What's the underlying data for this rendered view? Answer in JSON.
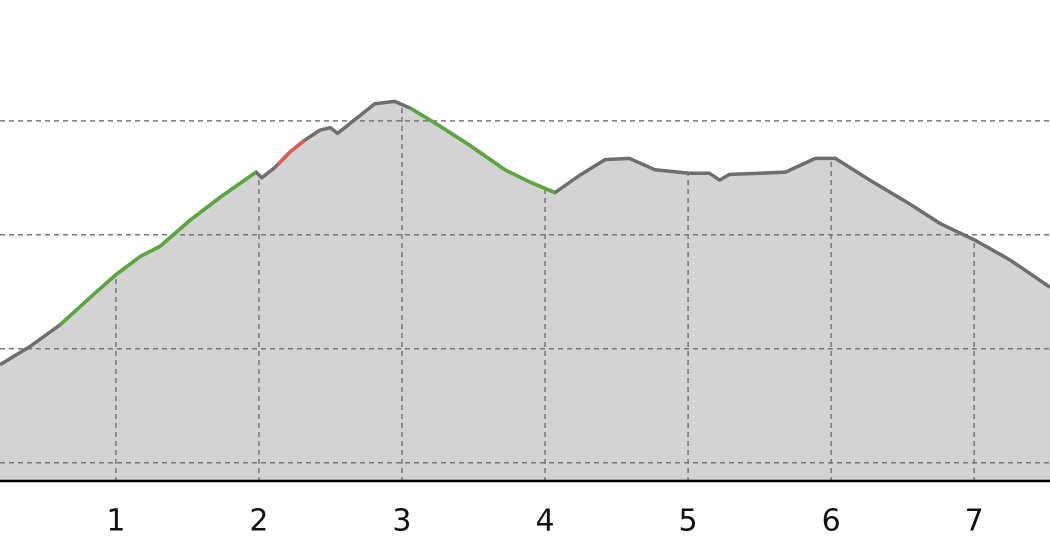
{
  "chart_data": {
    "type": "area",
    "x": [
      0.19,
      0.4,
      0.61,
      0.82,
      1.0,
      1.17,
      1.31,
      1.52,
      1.73,
      1.98,
      2.02,
      2.11,
      2.22,
      2.32,
      2.43,
      2.5,
      2.55,
      2.67,
      2.81,
      2.95,
      3.06,
      3.27,
      3.48,
      3.72,
      3.9,
      4.07,
      4.24,
      4.42,
      4.59,
      4.77,
      5.01,
      5.15,
      5.22,
      5.29,
      5.5,
      5.68,
      5.89,
      6.03,
      6.27,
      6.55,
      6.76,
      7.01,
      7.25,
      7.53
    ],
    "values": [
      186,
      202,
      221,
      245,
      265,
      281,
      290,
      313,
      333,
      355,
      350,
      359,
      373,
      383,
      392,
      394,
      389,
      401,
      415,
      417,
      411,
      395,
      378,
      357,
      346,
      337,
      352,
      366,
      367,
      357,
      354,
      354,
      348,
      353,
      354,
      355,
      367,
      367,
      348,
      327,
      310,
      295,
      278,
      254
    ],
    "color": "#6e6e6e",
    "fill": "#d3d3d3",
    "highlights": [
      {
        "from": 0.61,
        "to": 1.98,
        "color": "#5aa83c"
      },
      {
        "from": 2.13,
        "to": 2.32,
        "color": "#e05a50"
      },
      {
        "from": 3.06,
        "to": 4.07,
        "color": "#5aa83c"
      }
    ],
    "xlim": [
      0.19,
      7.53
    ],
    "xticks": [
      1,
      2,
      3,
      4,
      5,
      6,
      7
    ],
    "ylim": [
      84,
      506
    ],
    "yticks": [
      100,
      200,
      300,
      400
    ],
    "grid": true
  }
}
